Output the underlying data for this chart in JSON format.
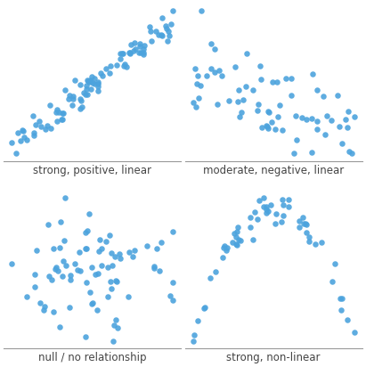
{
  "dot_color": "#4CA3DD",
  "dot_size": 22,
  "alpha": 0.9,
  "labels": [
    "strong, positive, linear",
    "moderate, negative, linear",
    "null / no relationship",
    "strong, non-linear"
  ],
  "label_fontsize": 8.5,
  "background_color": "#ffffff",
  "n_points_1": 100,
  "n_points_2": 70,
  "n_points_3": 80,
  "n_points_4": 60
}
